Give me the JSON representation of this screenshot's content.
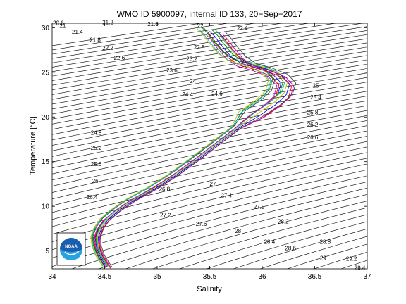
{
  "chart_data": {
    "type": "line",
    "title": "WMO ID 5900097, internal ID 133, 20−Sep−2017",
    "xlabel": "Salinity",
    "ylabel": "Temperature [°C]",
    "xlim": [
      34,
      37
    ],
    "ylim": [
      3,
      30.5
    ],
    "xticks": [
      "34",
      "34.5",
      "35",
      "35.5",
      "36",
      "36.5",
      "37"
    ],
    "yticks": [
      "5",
      "10",
      "15",
      "20",
      "25",
      "30"
    ],
    "grid": false,
    "legend": "none",
    "logo_text": "NOAA",
    "density_contour_labels": [
      {
        "text": "20.6",
        "s": 34.06,
        "t": 30.3
      },
      {
        "text": "21",
        "s": 34.1,
        "t": 30.0
      },
      {
        "text": "21.2",
        "s": 34.53,
        "t": 30.4
      },
      {
        "text": "21.6",
        "s": 34.96,
        "t": 30.2
      },
      {
        "text": "21.4",
        "s": 34.24,
        "t": 29.3
      },
      {
        "text": "21.8",
        "s": 34.41,
        "t": 28.4
      },
      {
        "text": "22",
        "s": 35.41,
        "t": 30.0
      },
      {
        "text": "22.4",
        "s": 35.81,
        "t": 29.7
      },
      {
        "text": "22.2",
        "s": 34.53,
        "t": 27.5
      },
      {
        "text": "22.6",
        "s": 34.64,
        "t": 26.4
      },
      {
        "text": "22.8",
        "s": 35.4,
        "t": 27.6
      },
      {
        "text": "23.2",
        "s": 35.33,
        "t": 26.3
      },
      {
        "text": "23.6",
        "s": 35.14,
        "t": 25.0
      },
      {
        "text": "24",
        "s": 35.34,
        "t": 23.8
      },
      {
        "text": "24.4",
        "s": 35.29,
        "t": 22.3
      },
      {
        "text": "24.6",
        "s": 35.57,
        "t": 22.4
      },
      {
        "text": "25",
        "s": 36.51,
        "t": 23.3
      },
      {
        "text": "25.4",
        "s": 36.51,
        "t": 22.0
      },
      {
        "text": "25.8",
        "s": 36.48,
        "t": 20.3
      },
      {
        "text": "26.2",
        "s": 36.48,
        "t": 18.9
      },
      {
        "text": "26.6",
        "s": 36.48,
        "t": 17.5
      },
      {
        "text": "24.8",
        "s": 34.42,
        "t": 18.0
      },
      {
        "text": "25.2",
        "s": 34.42,
        "t": 16.3
      },
      {
        "text": "25.6",
        "s": 34.42,
        "t": 14.5
      },
      {
        "text": "26",
        "s": 34.41,
        "t": 12.6
      },
      {
        "text": "26.4",
        "s": 34.38,
        "t": 10.8
      },
      {
        "text": "26.8",
        "s": 35.07,
        "t": 11.7
      },
      {
        "text": "27",
        "s": 35.53,
        "t": 12.3
      },
      {
        "text": "27.4",
        "s": 35.66,
        "t": 11.0
      },
      {
        "text": "27.2",
        "s": 35.08,
        "t": 8.8
      },
      {
        "text": "27.6",
        "s": 35.42,
        "t": 7.8
      },
      {
        "text": "27.8",
        "s": 35.97,
        "t": 9.7
      },
      {
        "text": "28",
        "s": 35.77,
        "t": 7.0
      },
      {
        "text": "28.2",
        "s": 36.2,
        "t": 8.1
      },
      {
        "text": "28.4",
        "s": 36.07,
        "t": 5.8
      },
      {
        "text": "28.6",
        "s": 36.27,
        "t": 5.1
      },
      {
        "text": "28.8",
        "s": 36.6,
        "t": 5.8
      },
      {
        "text": "29",
        "s": 36.58,
        "t": 4.0
      },
      {
        "text": "29.2",
        "s": 36.85,
        "t": 3.9
      },
      {
        "text": "29.4",
        "s": 36.93,
        "t": 2.9
      }
    ],
    "profile_path": {
      "s": [
        34.52,
        34.45,
        34.42,
        34.41,
        34.44,
        34.5,
        34.6,
        34.75,
        34.95,
        35.15,
        35.35,
        35.55,
        35.75,
        35.9,
        36.05,
        36.15,
        36.18,
        36.1,
        35.95,
        35.8,
        35.7,
        35.65,
        35.6,
        35.55,
        35.5
      ],
      "t": [
        3.2,
        4.5,
        5.5,
        6.5,
        7.5,
        8.5,
        9.5,
        10.7,
        12.0,
        13.5,
        15.2,
        17.0,
        18.8,
        20.3,
        21.5,
        22.6,
        23.8,
        24.8,
        25.5,
        26.0,
        26.8,
        27.5,
        28.2,
        29.0,
        29.6
      ]
    },
    "series": [
      {
        "color": "#0000ff",
        "s_offset": 0.0,
        "t_offset": 0.0
      },
      {
        "color": "#008000",
        "s_offset": 0.02,
        "t_offset": 0.2
      },
      {
        "color": "#ff0000",
        "s_offset": -0.02,
        "t_offset": -0.2
      },
      {
        "color": "#00bfbf",
        "s_offset": 0.04,
        "t_offset": 0.3
      },
      {
        "color": "#bf00bf",
        "s_offset": -0.04,
        "t_offset": -0.3
      },
      {
        "color": "#bfbf00",
        "s_offset": 0.06,
        "t_offset": 0.1
      },
      {
        "color": "#404040",
        "s_offset": -0.06,
        "t_offset": 0.4
      },
      {
        "color": "#0000ff",
        "s_offset": 0.08,
        "t_offset": -0.1
      },
      {
        "color": "#008000",
        "s_offset": -0.08,
        "t_offset": 0.5
      },
      {
        "color": "#ff0000",
        "s_offset": 0.1,
        "t_offset": -0.4
      },
      {
        "color": "#00bfbf",
        "s_offset": -0.1,
        "t_offset": 0.2
      },
      {
        "color": "#bf00bf",
        "s_offset": 0.12,
        "t_offset": -0.3
      },
      {
        "color": "#bfbf00",
        "s_offset": -0.12,
        "t_offset": 0.3
      },
      {
        "color": "#404040",
        "s_offset": 0.14,
        "t_offset": 0.0
      }
    ]
  }
}
